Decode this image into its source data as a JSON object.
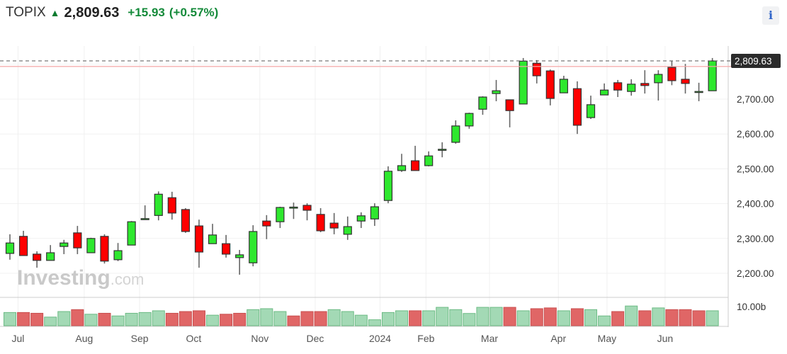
{
  "header": {
    "symbol": "TOPIX",
    "direction_icon": "arrow-up-icon",
    "last": "2,809.63",
    "change": "+15.93",
    "change_pct": "(+0.57%)",
    "info_label": "i"
  },
  "watermark": {
    "brand": "Investing",
    "suffix": ".com"
  },
  "colors": {
    "up": "#2ee82e",
    "down": "#ff0000",
    "vol_up": "#a3d9b5",
    "vol_down": "#e06666",
    "change": "#148a3a"
  },
  "chart_data": {
    "type": "candlestick",
    "title": "TOPIX",
    "interval": "weekly",
    "last_price": 2809.63,
    "last_price_label": "2,809.63",
    "prev_close": 2793.7,
    "ylim": [
      2150,
      2860
    ],
    "y_ticks": [
      2200,
      2300,
      2400,
      2500,
      2600,
      2700
    ],
    "y_tick_labels": [
      "2,200.00",
      "2,300.00",
      "2,400.00",
      "2,500.00",
      "2,600.00",
      "2,700.00"
    ],
    "volume_tick_label": "10.00b",
    "volume_tick": 10.0,
    "x_labels": [
      {
        "label": "Jul",
        "week": 0.6
      },
      {
        "label": "Aug",
        "week": 5.5
      },
      {
        "label": "Sep",
        "week": 9.6
      },
      {
        "label": "Oct",
        "week": 13.6
      },
      {
        "label": "Nov",
        "week": 18.5
      },
      {
        "label": "Dec",
        "week": 22.6
      },
      {
        "label": "2024",
        "week": 27.4
      },
      {
        "label": "Feb",
        "week": 30.8
      },
      {
        "label": "Mar",
        "week": 35.5
      },
      {
        "label": "Apr",
        "week": 40.6
      },
      {
        "label": "May",
        "week": 44.2
      },
      {
        "label": "Jun",
        "week": 48.5
      }
    ],
    "ohlc": [
      [
        2257,
        2312,
        2239,
        2287
      ],
      [
        2306,
        2322,
        2251,
        2251
      ],
      [
        2255,
        2263,
        2216,
        2237
      ],
      [
        2237,
        2281,
        2237,
        2259
      ],
      [
        2277,
        2296,
        2255,
        2287
      ],
      [
        2316,
        2336,
        2255,
        2273
      ],
      [
        2259,
        2302,
        2259,
        2300
      ],
      [
        2306,
        2312,
        2228,
        2235
      ],
      [
        2239,
        2287,
        2235,
        2265
      ],
      [
        2281,
        2350,
        2281,
        2348
      ],
      [
        2356,
        2395,
        2355,
        2357
      ],
      [
        2366,
        2435,
        2352,
        2427
      ],
      [
        2417,
        2434,
        2354,
        2373
      ],
      [
        2383,
        2387,
        2316,
        2320
      ],
      [
        2336,
        2354,
        2216,
        2261
      ],
      [
        2285,
        2342,
        2285,
        2310
      ],
      [
        2285,
        2310,
        2245,
        2255
      ],
      [
        2245,
        2267,
        2196,
        2253
      ],
      [
        2230,
        2338,
        2220,
        2320
      ],
      [
        2350,
        2367,
        2298,
        2336
      ],
      [
        2348,
        2391,
        2330,
        2389
      ],
      [
        2388,
        2403,
        2356,
        2390
      ],
      [
        2395,
        2401,
        2352,
        2381
      ],
      [
        2369,
        2387,
        2318,
        2322
      ],
      [
        2344,
        2373,
        2312,
        2330
      ],
      [
        2312,
        2363,
        2296,
        2334
      ],
      [
        2350,
        2375,
        2330,
        2365
      ],
      [
        2356,
        2401,
        2336,
        2391
      ],
      [
        2409,
        2507,
        2401,
        2493
      ],
      [
        2495,
        2543,
        2491,
        2509
      ],
      [
        2523,
        2566,
        2495,
        2495
      ],
      [
        2509,
        2550,
        2507,
        2537
      ],
      [
        2554,
        2576,
        2533,
        2556
      ],
      [
        2576,
        2639,
        2572,
        2623
      ],
      [
        2623,
        2661,
        2615,
        2659
      ],
      [
        2671,
        2708,
        2655,
        2706
      ],
      [
        2716,
        2755,
        2694,
        2724
      ],
      [
        2698,
        2698,
        2619,
        2667
      ],
      [
        2686,
        2818,
        2686,
        2809
      ],
      [
        2803,
        2812,
        2745,
        2767
      ],
      [
        2781,
        2785,
        2682,
        2702
      ],
      [
        2718,
        2767,
        2718,
        2757
      ],
      [
        2730,
        2751,
        2600,
        2625
      ],
      [
        2647,
        2710,
        2643,
        2684
      ],
      [
        2712,
        2745,
        2712,
        2726
      ],
      [
        2747,
        2755,
        2706,
        2726
      ],
      [
        2722,
        2757,
        2710,
        2743
      ],
      [
        2745,
        2783,
        2716,
        2739
      ],
      [
        2747,
        2783,
        2696,
        2771
      ],
      [
        2791,
        2809,
        2740,
        2753
      ],
      [
        2757,
        2801,
        2716,
        2745
      ],
      [
        2721,
        2747,
        2694,
        2722
      ],
      [
        2724,
        2818,
        2724,
        2809.63
      ]
    ],
    "volume_b": [
      6.9,
      6.9,
      6.5,
      4.5,
      7.4,
      8.4,
      6.0,
      6.5,
      5.1,
      6.5,
      6.9,
      7.8,
      6.5,
      7.4,
      7.8,
      5.5,
      6.0,
      6.5,
      8.4,
      8.9,
      7.4,
      5.1,
      7.4,
      7.4,
      8.4,
      7.4,
      5.5,
      3.1,
      6.9,
      7.8,
      7.8,
      7.8,
      9.6,
      8.4,
      6.4,
      9.6,
      9.6,
      9.6,
      7.8,
      8.9,
      9.3,
      7.8,
      8.9,
      8.4,
      5.1,
      7.4,
      10.3,
      7.8,
      9.3,
      8.4,
      8.4,
      7.8,
      7.8
    ],
    "volume_dir": "GRRGGRGRGGGGRRRGRRGGGRRRGGGGGGRGGGGGGRGRRGRGGRGRGRRRG"
  }
}
